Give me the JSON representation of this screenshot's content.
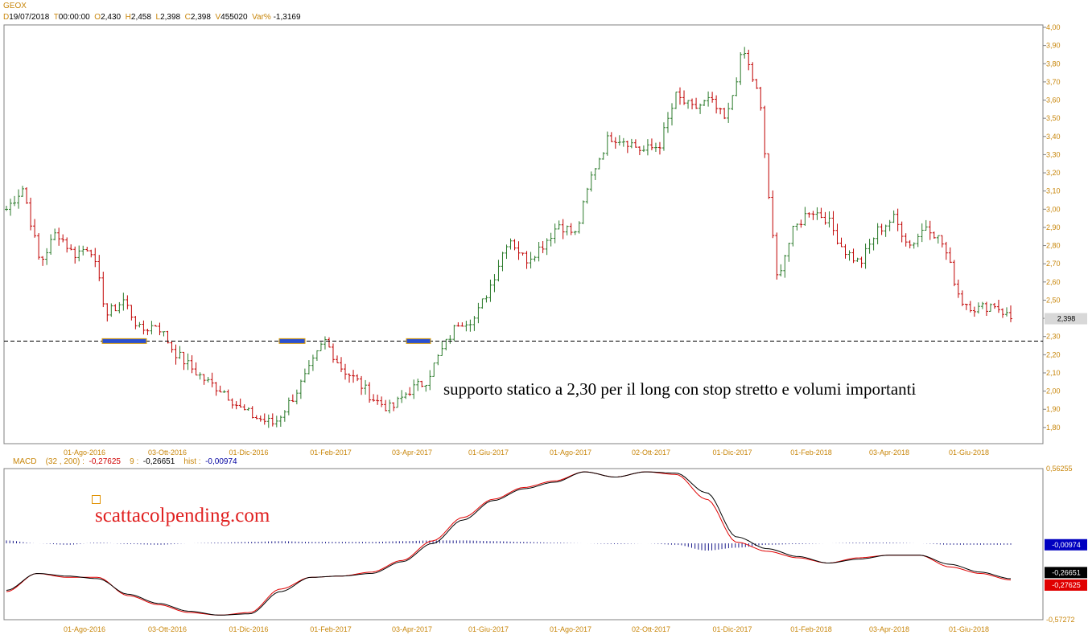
{
  "header": {
    "symbol": "GEOX",
    "d_label": "D",
    "d_value": "19/07/2018",
    "t_label": "T",
    "t_value": "00:00:00",
    "o_label": "O",
    "o_value": "2,430",
    "h_label": "H",
    "h_value": "2,458",
    "l_label": "L",
    "l_value": "2,398",
    "c_label": "C",
    "c_value": "2,398",
    "v_label": "V",
    "v_value": "455020",
    "var_label": "Var%",
    "var_value": "-1,3169"
  },
  "macd_header": {
    "name": "MACD",
    "params": "(32 , 200) :",
    "macd_value": "-0,27625",
    "signal_label": "9 :",
    "signal_value": "-0,26651",
    "hist_label": "hist :",
    "hist_value": "-0,00974"
  },
  "annotation": "supporto statico a 2,30 per il long con stop stretto e volumi importanti",
  "watermark": "scattacolpending.com",
  "colors": {
    "date_text": "#c8860a",
    "candle_up": "#2a7a2a",
    "candle_down": "#c00000",
    "macd_line": "#000000",
    "signal_line": "#e00000",
    "histogram": "#1a1a8a",
    "support_marker": "#2a4fd0",
    "support_marker_border": "#e0a000",
    "last_price_tag": "#d8d8d8",
    "hist_tag": "#0000c0",
    "macd_tag": "#000000",
    "signal_tag": "#e00000"
  },
  "chart_data": [
    {
      "type": "ohlc",
      "symbol": "GEOX",
      "x_labels": [
        "01-Ago-2016",
        "03-Ott-2016",
        "01-Dic-2016",
        "01-Feb-2017",
        "03-Apr-2017",
        "01-Giu-2017",
        "01-Ago-2017",
        "02-Ott-2017",
        "01-Dic-2017",
        "01-Feb-2018",
        "03-Apr-2018",
        "01-Giu-2018"
      ],
      "y_ticks": [
        "4,00",
        "3,90",
        "3,80",
        "3,70",
        "3,60",
        "3,50",
        "3,40",
        "3,30",
        "3,20",
        "3,10",
        "3,00",
        "2,90",
        "2,80",
        "2,70",
        "2,60",
        "2,50",
        "2,40",
        "2,30",
        "2,20",
        "2,10",
        "2,00",
        "1,90",
        "1,80"
      ],
      "ylim": [
        1.74,
        4.0
      ],
      "last_price": 2.398,
      "last_price_label": "2,398",
      "support_level": 2.275,
      "support_markers_at": [
        "Lug-2016 (2,27)",
        "Dic-2016 (2,27)",
        "Mar-2017 (2,27)"
      ],
      "close_path": [
        [
          "Giu-2016",
          3.0
        ],
        [
          "inizio Lug-2016",
          3.12
        ],
        [
          "Lug-2016",
          2.7
        ],
        [
          "Lug-2016",
          2.88
        ],
        [
          "01-Ago-2016",
          2.75
        ],
        [
          "Ago-2016",
          2.8
        ],
        [
          "Ago-2016",
          2.42
        ],
        [
          "Set-2016",
          2.5
        ],
        [
          "Set-2016",
          2.33
        ],
        [
          "Set-2016",
          2.37
        ],
        [
          "03-Ott-2016",
          2.22
        ],
        [
          "Ott-2016",
          2.13
        ],
        [
          "Ott-2016",
          2.05
        ],
        [
          "Nov-2016",
          2.0
        ],
        [
          "Nov-2016",
          1.9
        ],
        [
          "01-Dic-2016",
          1.85
        ],
        [
          "Dic-2016",
          1.82
        ],
        [
          "Dic-2016",
          1.95
        ],
        [
          "Gen-2017",
          2.1
        ],
        [
          "Gen-2017",
          2.28
        ],
        [
          "Gen-2017",
          2.13
        ],
        [
          "01-Feb-2017",
          2.05
        ],
        [
          "Feb-2017",
          1.95
        ],
        [
          "Feb-2017",
          1.9
        ],
        [
          "Mar-2017",
          2.0
        ],
        [
          "Mar-2017",
          2.05
        ],
        [
          "Mar-2017",
          2.22
        ],
        [
          "03-Apr-2017",
          2.38
        ],
        [
          "Apr-2017",
          2.4
        ],
        [
          "Apr-2017",
          2.6
        ],
        [
          "Mag-2017",
          2.85
        ],
        [
          "Mag-2017",
          2.72
        ],
        [
          "01-Giu-2017",
          2.8
        ],
        [
          "Giu-2017",
          2.92
        ],
        [
          "Lug-2017",
          2.86
        ],
        [
          "Lug-2017",
          3.2
        ],
        [
          "01-Ago-2017",
          3.4
        ],
        [
          "Ago-2017",
          3.38
        ],
        [
          "Ago-2017",
          3.32
        ],
        [
          "Set-2017",
          3.35
        ],
        [
          "02-Ott-2017",
          3.62
        ],
        [
          "Ott-2017",
          3.55
        ],
        [
          "Ott-2017",
          3.6
        ],
        [
          "Nov-2017",
          3.48
        ],
        [
          "Nov-2017",
          3.88
        ],
        [
          "Nov-2017",
          3.6
        ],
        [
          "Nov-2017",
          2.62
        ],
        [
          "01-Dic-2017",
          2.88
        ],
        [
          "Dic-2017",
          3.0
        ],
        [
          "Gen-2018",
          2.95
        ],
        [
          "01-Feb-2018",
          2.78
        ],
        [
          "Feb-2018",
          2.7
        ],
        [
          "Mar-2018",
          2.88
        ],
        [
          "Mar-2018",
          2.95
        ],
        [
          "03-Apr-2018",
          2.8
        ],
        [
          "Apr-2018",
          2.92
        ],
        [
          "Mag-2018",
          2.8
        ],
        [
          "01-Giu-2018",
          2.5
        ],
        [
          "Giu-2018",
          2.45
        ],
        [
          "Lug-2018",
          2.48
        ],
        [
          "19-Lug-2018",
          2.398
        ]
      ]
    },
    {
      "type": "line",
      "name": "MACD (32 , 200)",
      "x_labels": [
        "01-Ago-2016",
        "03-Ott-2016",
        "01-Dic-2016",
        "01-Feb-2017",
        "03-Apr-2017",
        "01-Giu-2017",
        "01-Ago-2017",
        "02-Ott-2017",
        "01-Dic-2017",
        "01-Feb-2018",
        "03-Apr-2018",
        "01-Giu-2018"
      ],
      "ylim": [
        -0.57272,
        0.56255
      ],
      "y_ticks": [
        "0,56255",
        "-0,57272"
      ],
      "series": [
        {
          "name": "MACD",
          "last_value": -0.27625,
          "values": [
            -0.37,
            -0.23,
            -0.26,
            -0.26,
            -0.4,
            -0.47,
            -0.53,
            -0.55,
            -0.53,
            -0.35,
            -0.26,
            -0.25,
            -0.22,
            -0.13,
            0.02,
            0.2,
            0.34,
            0.43,
            0.48,
            0.55,
            0.51,
            0.55,
            0.53,
            0.34,
            0.01,
            -0.06,
            -0.11,
            -0.15,
            -0.11,
            -0.09,
            -0.09,
            -0.18,
            -0.23,
            -0.28
          ]
        },
        {
          "name": "9",
          "last_value": -0.26651,
          "values": [
            -0.36,
            -0.23,
            -0.25,
            -0.27,
            -0.39,
            -0.46,
            -0.52,
            -0.55,
            -0.54,
            -0.37,
            -0.26,
            -0.25,
            -0.23,
            -0.14,
            0.0,
            0.18,
            0.33,
            0.42,
            0.47,
            0.55,
            0.51,
            0.55,
            0.54,
            0.39,
            0.05,
            -0.04,
            -0.1,
            -0.15,
            -0.12,
            -0.09,
            -0.09,
            -0.16,
            -0.22,
            -0.27
          ]
        }
      ],
      "histogram": {
        "name": "hist",
        "last_value": -0.00974,
        "values": [
          0.02,
          0.0,
          -0.01,
          0.005,
          -0.005,
          -0.01,
          0.0,
          0.005,
          0.01,
          0.015,
          0.01,
          0.01,
          0.01,
          0.015,
          0.02,
          0.02,
          0.015,
          0.01,
          0.005,
          0.0,
          -0.005,
          0.0,
          -0.01,
          -0.05,
          -0.03,
          -0.01,
          -0.005,
          0.0,
          0.005,
          0.005,
          0.0,
          -0.01,
          -0.01,
          -0.01
        ]
      }
    }
  ]
}
